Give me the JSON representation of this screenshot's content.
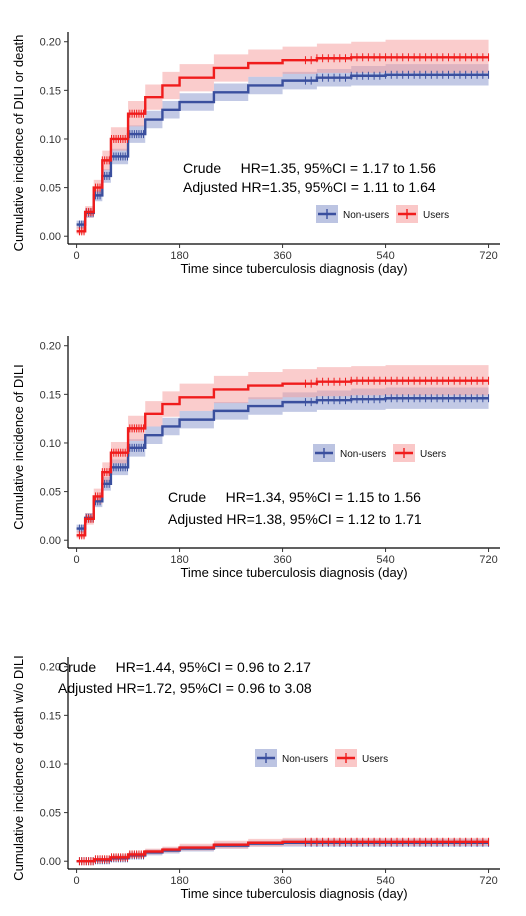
{
  "colors": {
    "non_users_line": "#3a4f9e",
    "non_users_band": "#8f9ccf",
    "users_line": "#f01c1c",
    "users_band": "#f6a3a3"
  },
  "chart_data": [
    {
      "type": "line",
      "xlabel": "Time since tuberculosis diagnosis (day)",
      "ylabel": "Cumulative incidence of DILI or death",
      "x_ticks": [
        0,
        180,
        360,
        540,
        720
      ],
      "y_ticks": [
        "0.00",
        "0.05",
        "0.10",
        "0.15",
        "0.20"
      ],
      "xlim": [
        -15,
        740
      ],
      "ylim": [
        -0.008,
        0.21
      ],
      "legend_position": "bottom-right",
      "annotations": [
        "Crude     HR=1.35, 95%CI = 1.17 to 1.56",
        "Adjusted HR=1.35, 95%CI = 1.11 to 1.64"
      ],
      "series": [
        {
          "name": "Non-users",
          "x": [
            0,
            15,
            30,
            45,
            60,
            90,
            120,
            150,
            180,
            240,
            300,
            360,
            420,
            480,
            540,
            600,
            660,
            720
          ],
          "y": [
            0.012,
            0.024,
            0.042,
            0.062,
            0.082,
            0.105,
            0.12,
            0.13,
            0.138,
            0.148,
            0.155,
            0.16,
            0.163,
            0.165,
            0.166,
            0.166,
            0.166,
            0.166
          ],
          "lower": [
            0.008,
            0.019,
            0.036,
            0.055,
            0.074,
            0.096,
            0.111,
            0.121,
            0.129,
            0.139,
            0.146,
            0.151,
            0.154,
            0.155,
            0.155,
            0.155,
            0.155,
            0.155
          ],
          "upper": [
            0.016,
            0.029,
            0.048,
            0.069,
            0.09,
            0.114,
            0.129,
            0.139,
            0.147,
            0.157,
            0.164,
            0.169,
            0.172,
            0.175,
            0.177,
            0.177,
            0.177,
            0.177
          ]
        },
        {
          "name": "Users",
          "x": [
            0,
            15,
            30,
            45,
            60,
            90,
            120,
            150,
            180,
            240,
            300,
            360,
            420,
            480,
            540,
            600,
            660,
            720
          ],
          "y": [
            0.005,
            0.025,
            0.05,
            0.078,
            0.1,
            0.126,
            0.143,
            0.155,
            0.163,
            0.173,
            0.178,
            0.181,
            0.183,
            0.184,
            0.184,
            0.184,
            0.184,
            0.184
          ],
          "lower": [
            0.002,
            0.019,
            0.042,
            0.068,
            0.088,
            0.113,
            0.13,
            0.141,
            0.149,
            0.159,
            0.164,
            0.167,
            0.168,
            0.168,
            0.168,
            0.168,
            0.168,
            0.168
          ],
          "upper": [
            0.01,
            0.031,
            0.058,
            0.088,
            0.112,
            0.139,
            0.156,
            0.169,
            0.177,
            0.187,
            0.192,
            0.195,
            0.198,
            0.2,
            0.202,
            0.202,
            0.202,
            0.202
          ]
        }
      ]
    },
    {
      "type": "line",
      "xlabel": "Time since tuberculosis diagnosis (day)",
      "ylabel": "Cumulative incidence of DILI",
      "x_ticks": [
        0,
        180,
        360,
        540,
        720
      ],
      "y_ticks": [
        "0.00",
        "0.05",
        "0.10",
        "0.15",
        "0.20"
      ],
      "xlim": [
        -15,
        740
      ],
      "ylim": [
        -0.008,
        0.21
      ],
      "legend_position": "center-right",
      "annotations": [
        "Crude     HR=1.34, 95%CI = 1.15 to 1.56",
        "Adjusted HR=1.38, 95%CI = 1.12 to 1.71"
      ],
      "series": [
        {
          "name": "Non-users",
          "x": [
            0,
            15,
            30,
            45,
            60,
            90,
            120,
            150,
            180,
            240,
            300,
            360,
            420,
            480,
            540,
            600,
            660,
            720
          ],
          "y": [
            0.012,
            0.023,
            0.04,
            0.058,
            0.075,
            0.095,
            0.108,
            0.117,
            0.124,
            0.133,
            0.138,
            0.142,
            0.144,
            0.145,
            0.146,
            0.146,
            0.146,
            0.146
          ],
          "lower": [
            0.008,
            0.018,
            0.034,
            0.051,
            0.067,
            0.086,
            0.099,
            0.108,
            0.115,
            0.124,
            0.129,
            0.132,
            0.134,
            0.134,
            0.135,
            0.135,
            0.135,
            0.135
          ],
          "upper": [
            0.016,
            0.028,
            0.046,
            0.065,
            0.083,
            0.104,
            0.117,
            0.126,
            0.133,
            0.142,
            0.147,
            0.152,
            0.154,
            0.156,
            0.157,
            0.157,
            0.157,
            0.157
          ]
        },
        {
          "name": "Users",
          "x": [
            0,
            15,
            30,
            45,
            60,
            90,
            120,
            150,
            180,
            240,
            300,
            360,
            420,
            480,
            540,
            600,
            660,
            720
          ],
          "y": [
            0.005,
            0.022,
            0.045,
            0.07,
            0.09,
            0.115,
            0.13,
            0.14,
            0.147,
            0.155,
            0.159,
            0.161,
            0.163,
            0.164,
            0.164,
            0.164,
            0.164,
            0.164
          ],
          "lower": [
            0.002,
            0.016,
            0.037,
            0.06,
            0.079,
            0.102,
            0.117,
            0.127,
            0.133,
            0.141,
            0.145,
            0.147,
            0.148,
            0.149,
            0.149,
            0.149,
            0.149,
            0.149
          ],
          "upper": [
            0.01,
            0.028,
            0.053,
            0.08,
            0.101,
            0.128,
            0.143,
            0.153,
            0.161,
            0.169,
            0.173,
            0.176,
            0.178,
            0.179,
            0.18,
            0.18,
            0.18,
            0.18
          ]
        }
      ]
    },
    {
      "type": "line",
      "xlabel": "Time since tuberculosis diagnosis (day)",
      "ylabel": "Cumulative incidence of  death w/o DILI",
      "x_ticks": [
        0,
        180,
        360,
        540,
        720
      ],
      "y_ticks": [
        "0.00",
        "0.05",
        "0.10",
        "0.15",
        "0.20"
      ],
      "xlim": [
        -15,
        740
      ],
      "ylim": [
        -0.008,
        0.21
      ],
      "legend_position": "center-right",
      "annotations": [
        "Crude     HR=1.44, 95%CI = 0.96 to 2.17",
        "Adjusted HR=1.72, 95%CI = 0.96 to 3.08"
      ],
      "series": [
        {
          "name": "Non-users",
          "x": [
            0,
            30,
            60,
            90,
            120,
            150,
            180,
            240,
            300,
            360,
            420,
            480,
            540,
            600,
            660,
            720
          ],
          "y": [
            0.0,
            0.001,
            0.003,
            0.006,
            0.009,
            0.011,
            0.013,
            0.016,
            0.018,
            0.019,
            0.019,
            0.019,
            0.019,
            0.019,
            0.019,
            0.019
          ],
          "lower": [
            0.0,
            0.0,
            0.001,
            0.004,
            0.006,
            0.008,
            0.01,
            0.013,
            0.015,
            0.015,
            0.015,
            0.015,
            0.015,
            0.015,
            0.015,
            0.015
          ],
          "upper": [
            0.001,
            0.002,
            0.005,
            0.008,
            0.012,
            0.014,
            0.016,
            0.019,
            0.021,
            0.023,
            0.023,
            0.023,
            0.023,
            0.023,
            0.023,
            0.023
          ]
        },
        {
          "name": "Users",
          "x": [
            0,
            30,
            60,
            90,
            120,
            150,
            180,
            240,
            300,
            360,
            420,
            480,
            540,
            600,
            660,
            720
          ],
          "y": [
            0.0,
            0.002,
            0.004,
            0.007,
            0.01,
            0.012,
            0.014,
            0.017,
            0.019,
            0.02,
            0.02,
            0.02,
            0.02,
            0.02,
            0.02,
            0.02
          ],
          "lower": [
            0.0,
            0.0,
            0.002,
            0.004,
            0.007,
            0.009,
            0.011,
            0.013,
            0.015,
            0.016,
            0.016,
            0.016,
            0.016,
            0.016,
            0.016,
            0.016
          ],
          "upper": [
            0.001,
            0.003,
            0.006,
            0.009,
            0.013,
            0.015,
            0.018,
            0.021,
            0.023,
            0.024,
            0.024,
            0.024,
            0.024,
            0.024,
            0.024,
            0.024
          ]
        }
      ]
    }
  ]
}
